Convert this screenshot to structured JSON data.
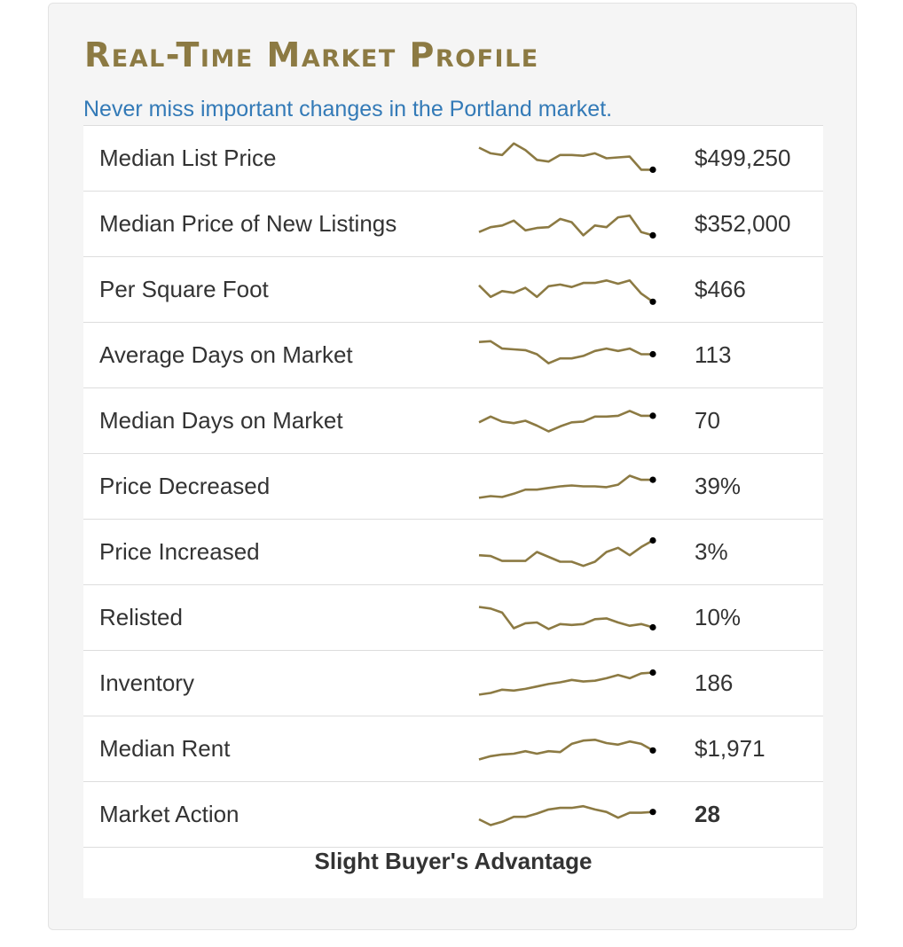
{
  "widget": {
    "title": "Real-Time Market Profile",
    "subtitle": "Never miss important changes in the Portland market.",
    "line_color": "#8c7a43",
    "marker_color": "#000000",
    "rows": [
      {
        "label": "Median List Price",
        "value": "$499,250",
        "trend": [
          6.5,
          5.8,
          5.6,
          7.0,
          6.2,
          5.0,
          4.8,
          5.6,
          5.6,
          5.5,
          5.8,
          5.2,
          5.3,
          5.4,
          3.8,
          3.8
        ]
      },
      {
        "label": "Median Price of New Listings",
        "value": "$352,000",
        "trend": [
          4.2,
          4.8,
          5.0,
          5.6,
          4.4,
          4.7,
          4.8,
          5.8,
          5.4,
          3.8,
          5.0,
          4.8,
          6.0,
          6.2,
          4.2,
          3.8
        ]
      },
      {
        "label": "Per Square Foot",
        "value": "$466",
        "trend": [
          5.7,
          4.3,
          5.0,
          4.8,
          5.4,
          4.3,
          5.6,
          5.8,
          5.5,
          6.0,
          6.0,
          6.3,
          5.9,
          6.3,
          4.7,
          3.7
        ]
      },
      {
        "label": "Average Days on Market",
        "value": "113",
        "trend": [
          6.8,
          6.9,
          6.0,
          5.9,
          5.8,
          5.3,
          4.2,
          4.8,
          4.8,
          5.1,
          5.7,
          6.0,
          5.7,
          6.0,
          5.3,
          5.3
        ]
      },
      {
        "label": "Median Days on Market",
        "value": "70",
        "trend": [
          5.0,
          5.7,
          5.1,
          4.9,
          5.2,
          4.6,
          3.9,
          4.5,
          5.0,
          5.1,
          5.7,
          5.7,
          5.8,
          6.4,
          5.8,
          5.8
        ]
      },
      {
        "label": "Price Decreased",
        "value": "39%",
        "trend": [
          3.8,
          4.0,
          3.9,
          4.3,
          4.8,
          4.8,
          5.0,
          5.2,
          5.3,
          5.2,
          5.2,
          5.1,
          5.4,
          6.5,
          6.0,
          6.0
        ]
      },
      {
        "label": "Price Increased",
        "value": "3%",
        "trend": [
          4.8,
          4.7,
          4.1,
          4.1,
          4.1,
          5.2,
          4.6,
          4.0,
          4.0,
          3.5,
          4.0,
          5.2,
          5.7,
          4.8,
          5.8,
          6.6
        ]
      },
      {
        "label": "Relisted",
        "value": "10%",
        "trend": [
          6.5,
          6.3,
          5.8,
          3.9,
          4.5,
          4.6,
          3.8,
          4.4,
          4.3,
          4.4,
          5.0,
          5.1,
          4.6,
          4.2,
          4.4,
          4.0
        ]
      },
      {
        "label": "Inventory",
        "value": "186",
        "trend": [
          3.8,
          4.0,
          4.4,
          4.3,
          4.5,
          4.8,
          5.1,
          5.3,
          5.6,
          5.4,
          5.5,
          5.8,
          6.2,
          5.8,
          6.4,
          6.5
        ]
      },
      {
        "label": "Median Rent",
        "value": "$1,971",
        "trend": [
          3.9,
          4.3,
          4.5,
          4.6,
          4.9,
          4.6,
          4.9,
          4.8,
          5.8,
          6.2,
          6.3,
          5.9,
          5.7,
          6.1,
          5.8,
          5.0
        ]
      },
      {
        "label": "Market Action",
        "value": "28",
        "value_bold": true,
        "trend": [
          4.6,
          3.9,
          4.3,
          4.9,
          4.9,
          5.3,
          5.8,
          6.0,
          6.0,
          6.2,
          5.8,
          5.5,
          4.8,
          5.4,
          5.4,
          5.5
        ]
      }
    ],
    "summary": "Slight Buyer's Advantage"
  }
}
